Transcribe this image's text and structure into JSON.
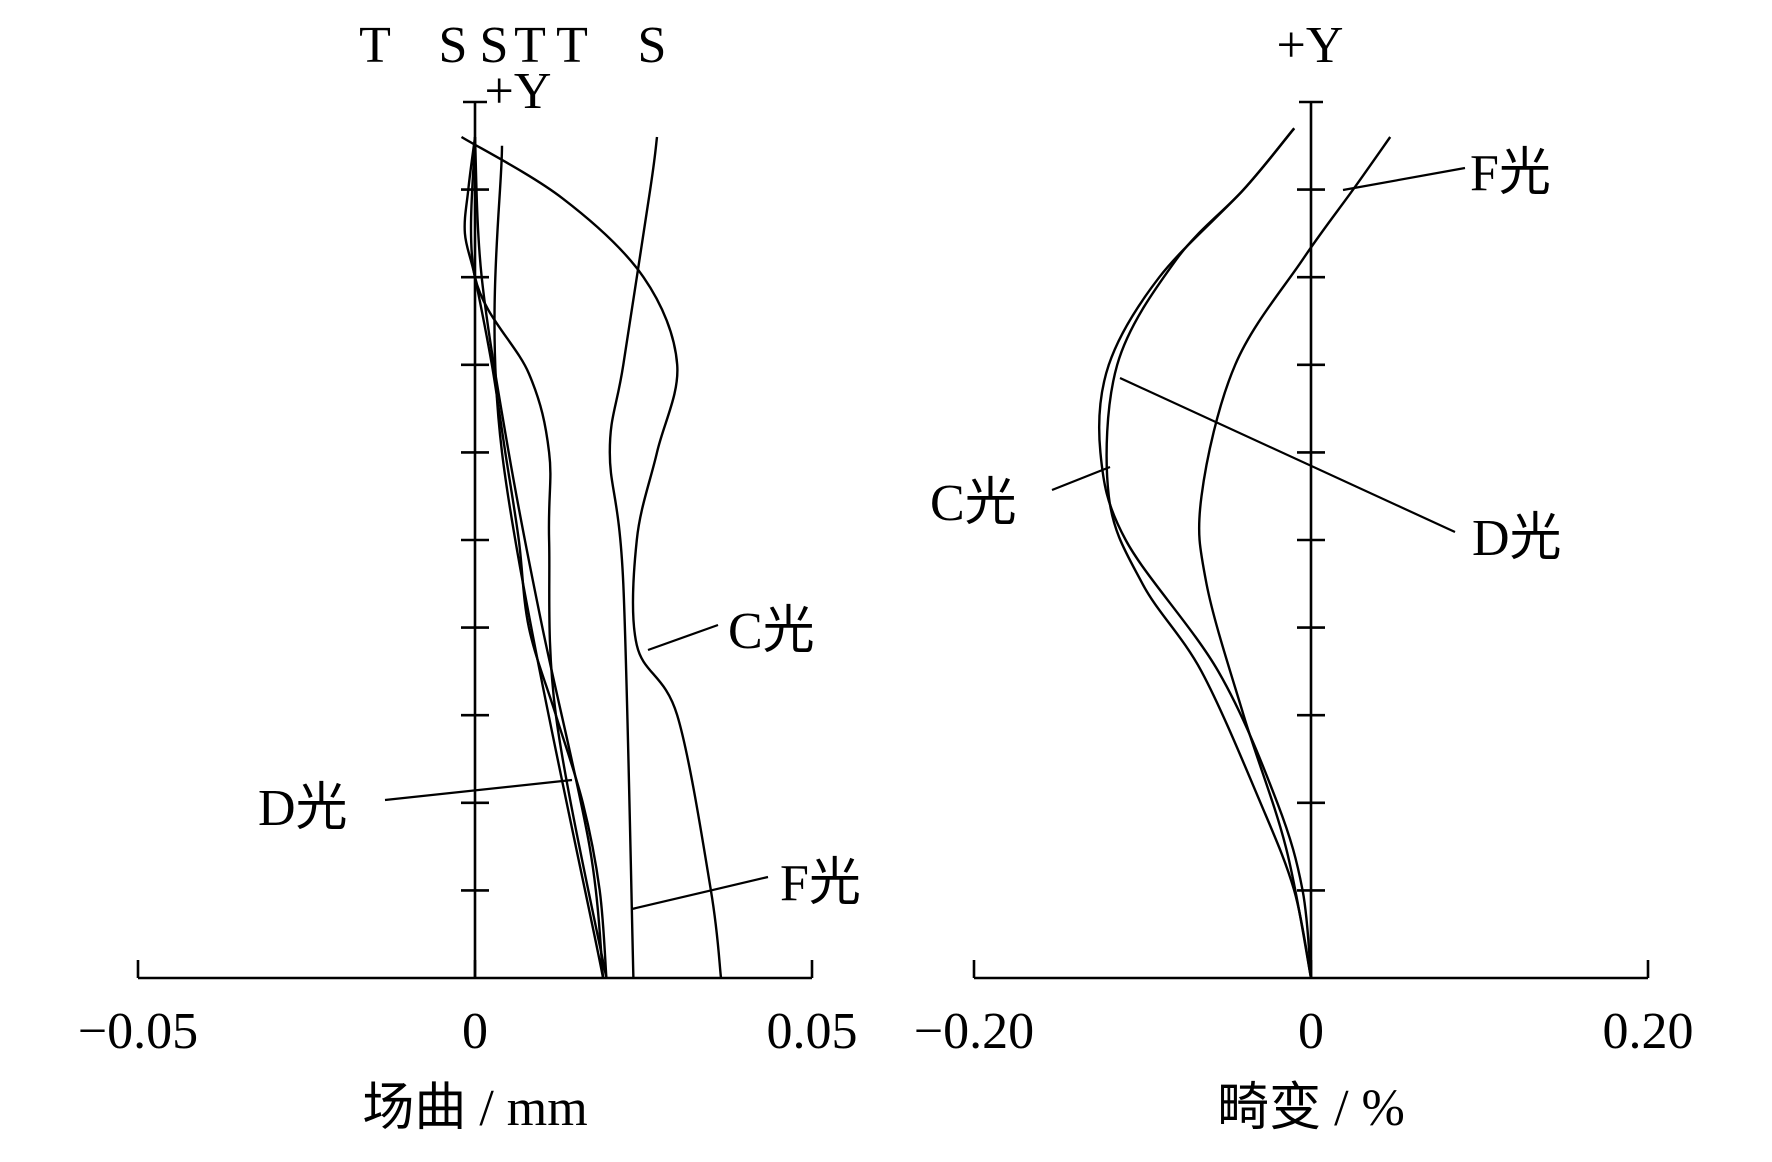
{
  "chart_data": [
    {
      "type": "line",
      "title": "",
      "xlabel": "场曲 / mm",
      "ylabel": "",
      "y_axis_label": "+Y",
      "xlim": [
        -0.05,
        0.05
      ],
      "ylim": [
        0,
        1
      ],
      "x_ticks": [
        "−0.05",
        "0",
        "0.05"
      ],
      "x_tick_values": [
        -0.05,
        0,
        0.05
      ],
      "y_tick_count": 10,
      "top_labels": [
        "T",
        "S",
        "S",
        "T",
        "T",
        "S"
      ],
      "annotations": [
        "C光",
        "D光",
        "F光"
      ],
      "series": [
        {
          "name": "D光 T",
          "points": [
            [
              0.0195,
              0.0
            ],
            [
              0.0185,
              0.1
            ],
            [
              0.016,
              0.2
            ],
            [
              0.012,
              0.3
            ],
            [
              0.008,
              0.4
            ],
            [
              0.0065,
              0.5
            ],
            [
              0.0045,
              0.6
            ],
            [
              0.0025,
              0.7
            ],
            [
              0.0,
              0.8
            ],
            [
              -0.0015,
              0.85
            ],
            [
              -0.001,
              0.9
            ],
            [
              0.0,
              0.96
            ]
          ]
        },
        {
          "name": "D光 S",
          "points": [
            [
              0.0195,
              0.0
            ],
            [
              0.012,
              0.3
            ],
            [
              0.011,
              0.5
            ],
            [
              0.011,
              0.6
            ],
            [
              0.008,
              0.69
            ],
            [
              0.0,
              0.8
            ],
            [
              0.0,
              0.96
            ]
          ]
        },
        {
          "name": "C光 T",
          "points": [
            [
              0.0365,
              0.0
            ],
            [
              0.035,
              0.1
            ],
            [
              0.03,
              0.3
            ],
            [
              0.024,
              0.38
            ],
            [
              0.024,
              0.5
            ],
            [
              0.027,
              0.6
            ],
            [
              0.03,
              0.7
            ],
            [
              0.025,
              0.8
            ],
            [
              0.013,
              0.89
            ],
            [
              -0.002,
              0.96
            ]
          ]
        },
        {
          "name": "C光 S",
          "points": [
            [
              0.0235,
              0.0
            ],
            [
              0.022,
              0.45
            ],
            [
              0.02,
              0.6
            ],
            [
              0.022,
              0.7
            ],
            [
              0.026,
              0.9
            ],
            [
              0.027,
              0.96
            ]
          ]
        },
        {
          "name": "F光 T",
          "points": [
            [
              0.019,
              0.0
            ],
            [
              0.017,
              0.15
            ],
            [
              0.01,
              0.4
            ],
            [
              0.005,
              0.6
            ],
            [
              0.001,
              0.8
            ],
            [
              0.0,
              0.96
            ]
          ]
        },
        {
          "name": "F光 S",
          "points": [
            [
              0.019,
              0.0
            ],
            [
              0.004,
              0.6
            ],
            [
              0.004,
              0.95
            ]
          ]
        }
      ]
    },
    {
      "type": "line",
      "title": "",
      "xlabel": "畸变 / %",
      "ylabel": "",
      "y_axis_label": "+Y",
      "xlim": [
        -0.2,
        0.2
      ],
      "ylim": [
        0,
        1
      ],
      "x_ticks": [
        "−0.20",
        "0",
        "0.20"
      ],
      "x_tick_values": [
        -0.2,
        0,
        0.2
      ],
      "y_tick_count": 10,
      "annotations": [
        "C光",
        "D光",
        "F光"
      ],
      "series": [
        {
          "name": "C光",
          "points": [
            [
              0.0,
              0.0
            ],
            [
              -0.005,
              0.1
            ],
            [
              -0.02,
              0.2
            ],
            [
              -0.055,
              0.35
            ],
            [
              -0.11,
              0.5
            ],
            [
              -0.125,
              0.6
            ],
            [
              -0.12,
              0.7
            ],
            [
              -0.09,
              0.8
            ],
            [
              -0.04,
              0.9
            ],
            [
              -0.01,
              0.97
            ]
          ]
        },
        {
          "name": "D光",
          "points": [
            [
              0.0,
              0.0
            ],
            [
              -0.01,
              0.1
            ],
            [
              -0.03,
              0.2
            ],
            [
              -0.065,
              0.35
            ],
            [
              -0.1,
              0.45
            ],
            [
              -0.12,
              0.55
            ],
            [
              -0.115,
              0.7
            ],
            [
              -0.08,
              0.82
            ],
            [
              -0.04,
              0.9
            ],
            [
              -0.01,
              0.97
            ]
          ]
        },
        {
          "name": "F光",
          "points": [
            [
              0.0,
              0.0
            ],
            [
              -0.015,
              0.15
            ],
            [
              -0.04,
              0.3
            ],
            [
              -0.062,
              0.45
            ],
            [
              -0.065,
              0.55
            ],
            [
              -0.045,
              0.7
            ],
            [
              -0.005,
              0.82
            ],
            [
              0.025,
              0.9
            ],
            [
              0.047,
              0.96
            ]
          ]
        }
      ]
    }
  ]
}
